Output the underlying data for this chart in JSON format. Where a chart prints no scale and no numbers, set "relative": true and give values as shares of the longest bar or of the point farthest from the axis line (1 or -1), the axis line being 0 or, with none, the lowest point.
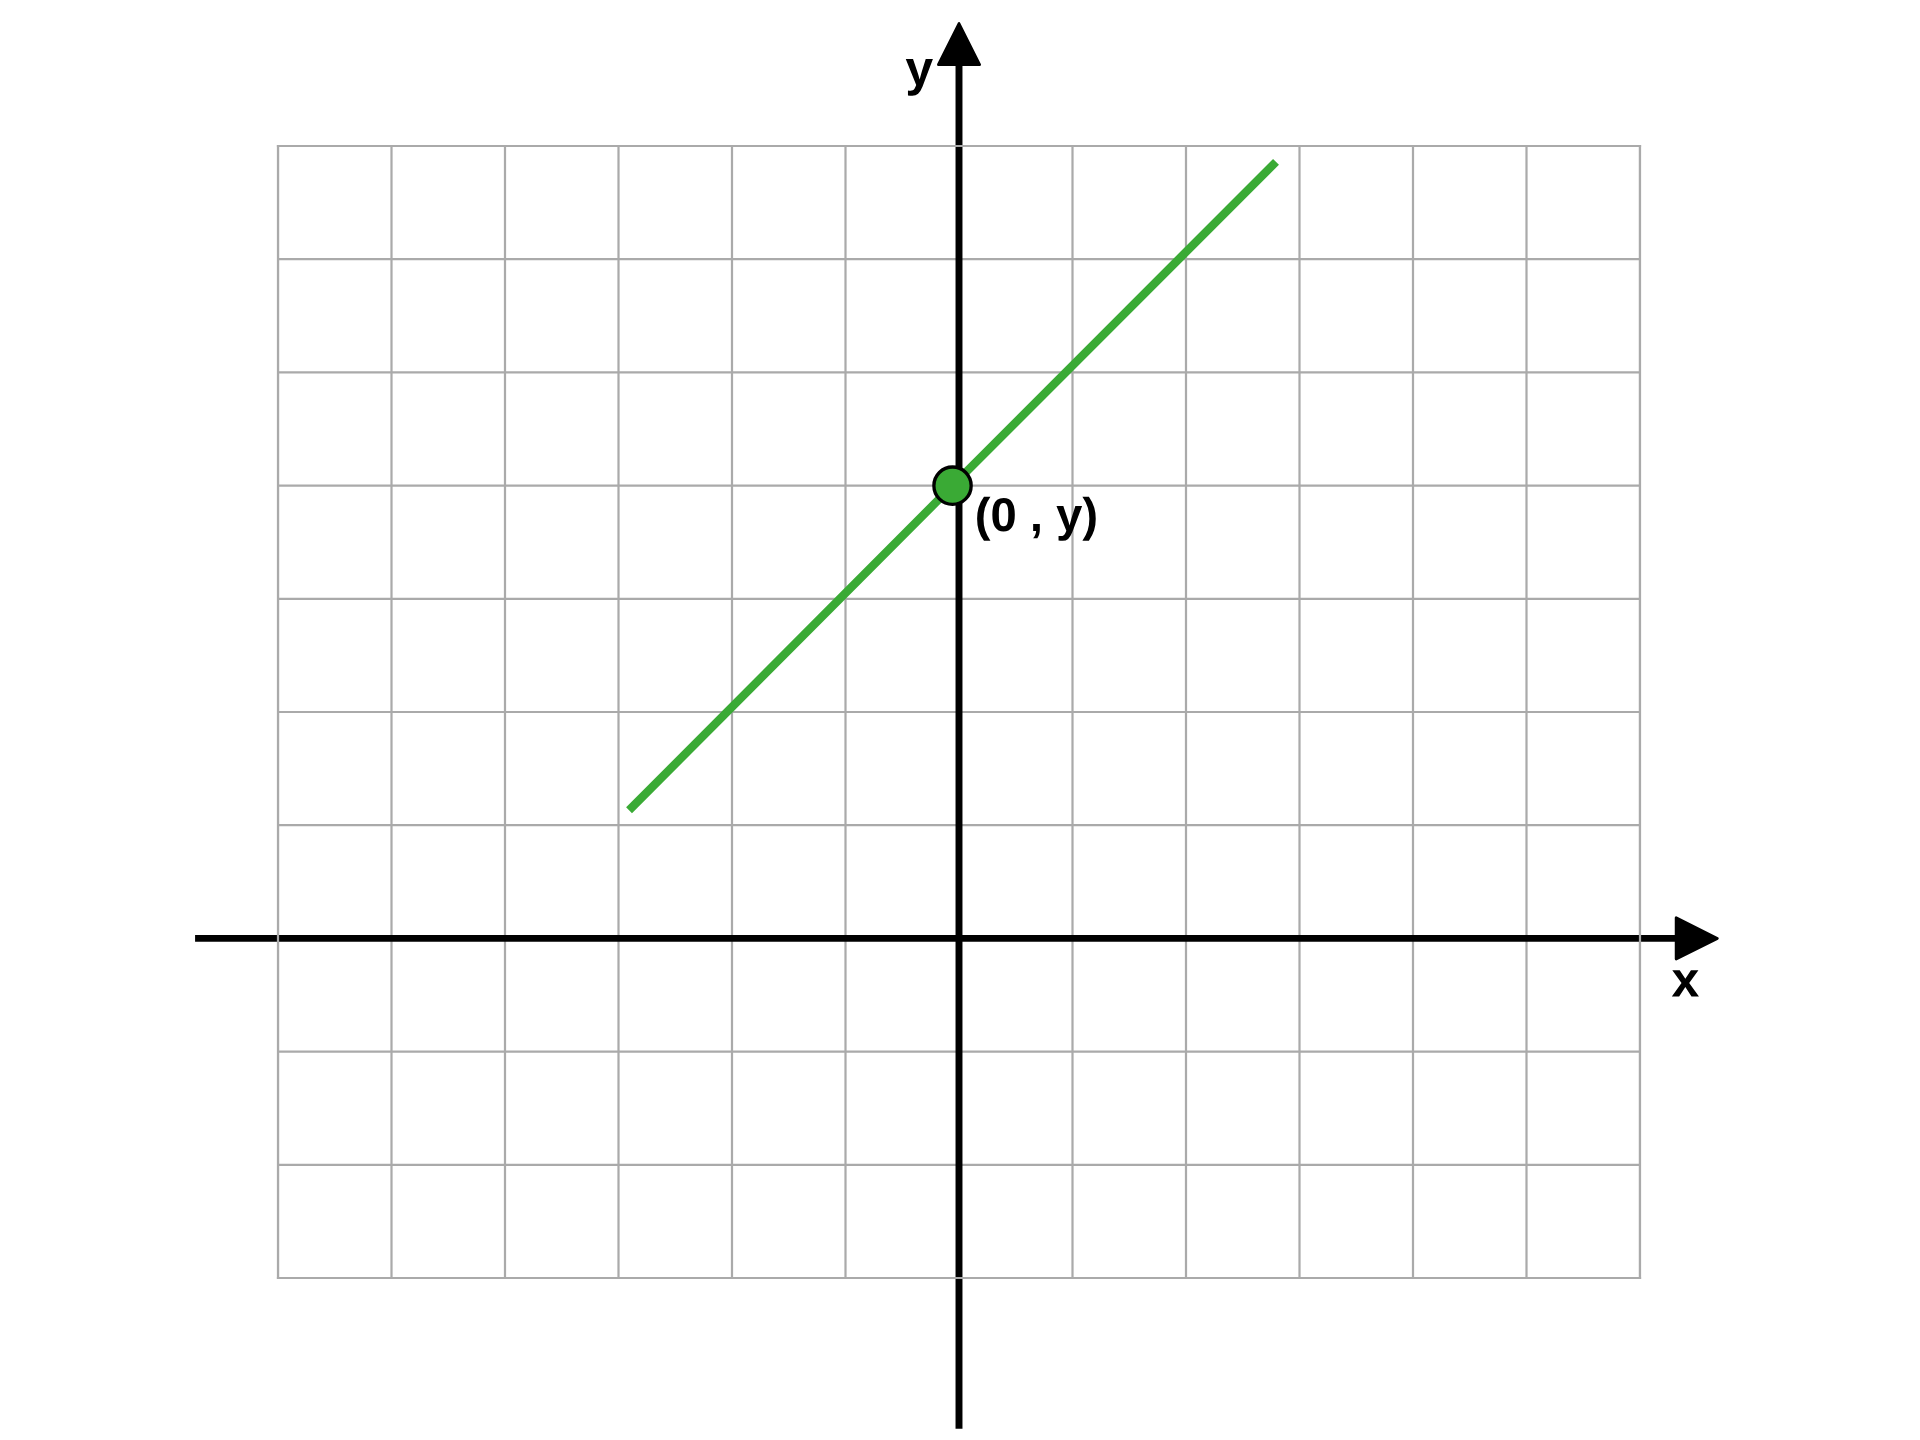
{
  "chart_data": {
    "type": "line",
    "relative": true,
    "xlabel": "x",
    "ylabel": "y",
    "categories": [
      null,
      null,
      null
    ],
    "series": [
      {
        "color": "#3aaa35",
        "values": [
          0.165,
          0.583,
          1.0
        ]
      }
    ],
    "annotations": [
      "(0 , y)"
    ],
    "grid": true
  }
}
